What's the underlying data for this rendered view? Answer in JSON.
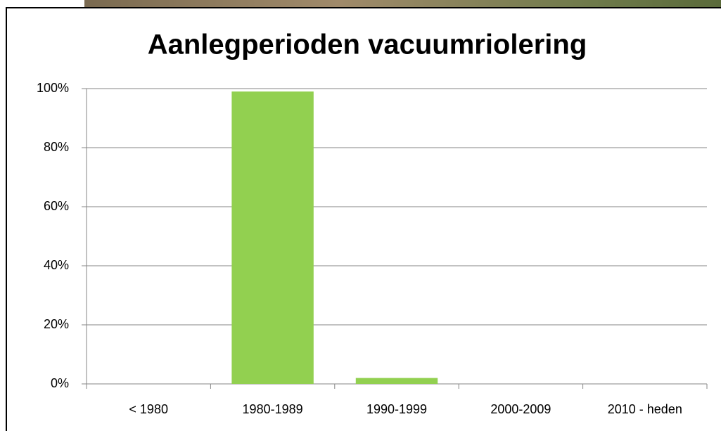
{
  "chart_data": {
    "type": "bar",
    "title": "Aanlegperioden vacuumriolering",
    "categories": [
      "< 1980",
      "1980-1989",
      "1990-1999",
      "2000-2009",
      "2010 - heden"
    ],
    "values": [
      0,
      99,
      2,
      0,
      0
    ],
    "color": "#92d050",
    "ylim": [
      0,
      100
    ],
    "yticks": [
      {
        "value": 0,
        "label": "0%"
      },
      {
        "value": 20,
        "label": "20%"
      },
      {
        "value": 40,
        "label": "40%"
      },
      {
        "value": 60,
        "label": "60%"
      },
      {
        "value": 80,
        "label": "80%"
      },
      {
        "value": 100,
        "label": "100%"
      }
    ],
    "grid": true
  }
}
